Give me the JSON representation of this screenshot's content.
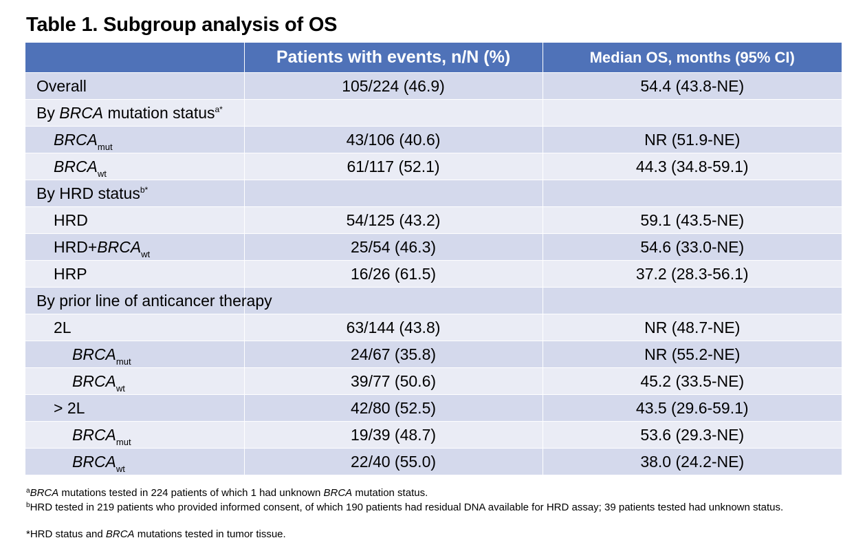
{
  "title": "Table 1. Subgroup analysis of OS",
  "header": {
    "col1": "",
    "col2": "Patients with events, n/N (%)",
    "col3": "Median OS, months (95% CI)"
  },
  "rows": [
    {
      "label": "Overall",
      "events": "105/224 (46.9)",
      "median": "54.4 (43.8-NE)"
    },
    {
      "label_pre": "By ",
      "label_italic": "BRCA",
      "label_post": " mutation status",
      "label_sup": "a*"
    },
    {
      "label_italic": "BRCA",
      "label_sub": "mut",
      "events": "43/106 (40.6)",
      "median": "NR (51.9-NE)"
    },
    {
      "label_italic": "BRCA",
      "label_sub": "wt",
      "events": "61/117 (52.1)",
      "median": "44.3 (34.8-59.1)"
    },
    {
      "label_pre": "By HRD status",
      "label_sup": "b*"
    },
    {
      "label": "HRD",
      "events": "54/125 (43.2)",
      "median": "59.1 (43.5-NE)"
    },
    {
      "label_pre": "HRD+",
      "label_italic": "BRCA",
      "label_sub": "wt",
      "events": "25/54 (46.3)",
      "median": "54.6 (33.0-NE)"
    },
    {
      "label": "HRP",
      "events": "16/26 (61.5)",
      "median": "37.2 (28.3-56.1)"
    },
    {
      "label": "By prior line of anticancer therapy"
    },
    {
      "label": "2L",
      "events": "63/144 (43.8)",
      "median": "NR (48.7-NE)"
    },
    {
      "label_italic": "BRCA",
      "label_sub": "mut",
      "events": "24/67 (35.8)",
      "median": "NR (55.2-NE)"
    },
    {
      "label_italic": "BRCA",
      "label_sub": "wt",
      "events": "39/77 (50.6)",
      "median": "45.2 (33.5-NE)"
    },
    {
      "label": "> 2L",
      "events": "42/80 (52.5)",
      "median": "43.5 (29.6-59.1)"
    },
    {
      "label_italic": "BRCA",
      "label_sub": "mut",
      "events": "19/39 (48.7)",
      "median": "53.6 (29.3-NE)"
    },
    {
      "label_italic": "BRCA",
      "label_sub": "wt",
      "events": "22/40 (55.0)",
      "median": "38.0 (24.2-NE)"
    }
  ],
  "footnotes": {
    "a": {
      "marker": "a",
      "italic1": "BRCA",
      "text1": " mutations tested in 224 patients of which 1 had unknown ",
      "italic2": "BRCA",
      "text2": " mutation status."
    },
    "b": {
      "marker": "b",
      "text": "HRD tested in 219 patients who provided informed consent, of which 190 patients had residual DNA available for HRD assay; 39 patients tested had unknown status."
    },
    "c": {
      "text1": "*HRD status and ",
      "italic": "BRCA",
      "text2": " mutations tested in tumor tissue."
    }
  },
  "colors": {
    "header_bg": "#4f72b8",
    "row_dark": "#d4d9ec",
    "row_light": "#eaecf5"
  }
}
